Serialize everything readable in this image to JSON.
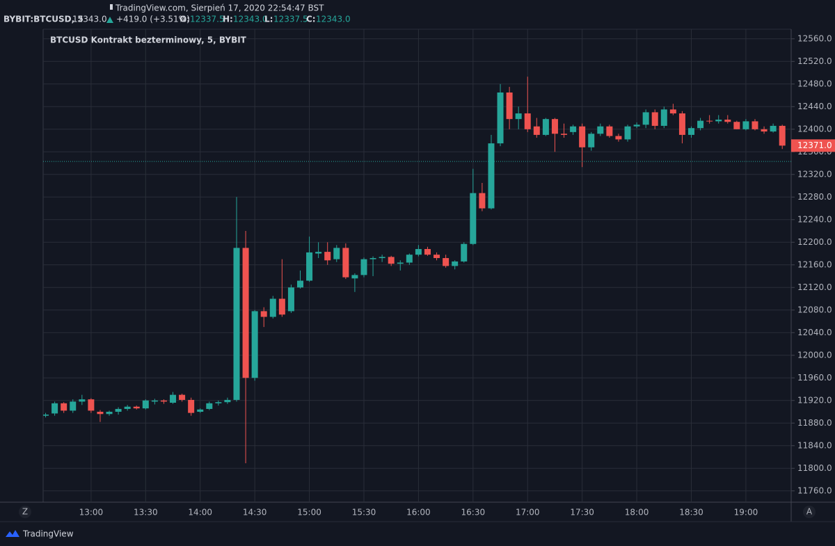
{
  "header": {
    "source": "TradingView.com, Sierpień 17, 2020 22:54:47 BST",
    "symbol": "BYBIT:BTCUSD, 5",
    "last": "12343.0",
    "change": "+419.0 (+3.51%)",
    "ohlc": [
      {
        "label": "O:",
        "value": "12337.5"
      },
      {
        "label": "H:",
        "value": "12343.0"
      },
      {
        "label": "L:",
        "value": "12337.5"
      },
      {
        "label": "C:",
        "value": "12343.0"
      }
    ]
  },
  "ui": {
    "left_button": "Z",
    "right_button": "A",
    "brand": "TradingView"
  },
  "chart_data": {
    "type": "candlestick",
    "title": "BTCUSD Kontrakt bezterminowy, 5, BYBIT",
    "up_color": "#26a69a",
    "down_color": "#ef5350",
    "grid": true,
    "x": [
      "12:35",
      "12:40",
      "12:45",
      "12:50",
      "12:55",
      "13:00",
      "13:05",
      "13:10",
      "13:15",
      "13:20",
      "13:25",
      "13:30",
      "13:35",
      "13:40",
      "13:45",
      "13:50",
      "13:55",
      "14:00",
      "14:05",
      "14:10",
      "14:15",
      "14:20",
      "14:25",
      "14:30",
      "14:35",
      "14:40",
      "14:45",
      "14:50",
      "14:55",
      "15:00",
      "15:05",
      "15:10",
      "15:15",
      "15:20",
      "15:25",
      "15:30",
      "15:35",
      "15:40",
      "15:45",
      "15:50",
      "15:55",
      "16:00",
      "16:05",
      "16:10",
      "16:15",
      "16:20",
      "16:25",
      "16:30",
      "16:35",
      "16:40",
      "16:45",
      "16:50",
      "16:55",
      "17:00",
      "17:05",
      "17:10",
      "17:15",
      "17:20",
      "17:25",
      "17:30",
      "17:35",
      "17:40",
      "17:45",
      "17:50",
      "17:55",
      "18:00",
      "18:05",
      "18:10",
      "18:15",
      "18:20",
      "18:25",
      "18:30",
      "18:35",
      "18:40",
      "18:45",
      "18:50",
      "18:55",
      "19:00",
      "19:05",
      "19:10",
      "19:15",
      "19:20"
    ],
    "open": [
      11893,
      11897,
      11915,
      11902,
      11918,
      11922,
      11900,
      11896,
      11900,
      11905,
      11909,
      11906,
      11918,
      11920,
      11916,
      11930,
      11921,
      11900,
      11905,
      11915,
      11917,
      11921,
      12190,
      11960,
      12078,
      12068,
      12100,
      12078,
      12120,
      12132,
      12180,
      12183,
      12170,
      12190,
      12136,
      12142,
      12170,
      12172,
      12174,
      12162,
      12164,
      12178,
      12188,
      12178,
      12172,
      12158,
      12166,
      12197,
      12287,
      12260,
      12375,
      12465,
      12418,
      12428,
      12405,
      12390,
      12418,
      12392,
      12395,
      12405,
      12368,
      12392,
      12405,
      12388,
      12382,
      12405,
      12408,
      12430,
      12406,
      12435,
      12428,
      12390,
      12402,
      12415,
      12414,
      12417,
      12413,
      12400,
      12414,
      12400,
      12396,
      12406
    ],
    "high": [
      11898,
      11918,
      11917,
      11922,
      11930,
      11924,
      11903,
      11902,
      11908,
      11912,
      11911,
      11922,
      11923,
      11922,
      11935,
      11932,
      11925,
      11906,
      11918,
      11920,
      11925,
      12280,
      12220,
      12080,
      12085,
      12105,
      12170,
      12125,
      12150,
      12210,
      12200,
      12200,
      12195,
      12198,
      12145,
      12173,
      12175,
      12178,
      12176,
      12168,
      12180,
      12195,
      12192,
      12182,
      12178,
      12168,
      12200,
      12330,
      12305,
      12390,
      12480,
      12475,
      12440,
      12493,
      12420,
      12420,
      12420,
      12410,
      12408,
      12410,
      12395,
      12410,
      12408,
      12392,
      12408,
      12412,
      12435,
      12435,
      12440,
      12445,
      12432,
      12405,
      12420,
      12425,
      12425,
      12425,
      12415,
      12418,
      12418,
      12405,
      12410,
      12408
    ],
    "low": [
      11890,
      11893,
      11898,
      11898,
      11912,
      11898,
      11882,
      11893,
      11895,
      11902,
      11904,
      11904,
      11913,
      11914,
      11914,
      11918,
      11893,
      11898,
      11903,
      11911,
      11914,
      11918,
      11809,
      11955,
      12050,
      12065,
      12068,
      12075,
      12118,
      12130,
      12172,
      12160,
      12165,
      12135,
      12112,
      12138,
      12140,
      12165,
      12158,
      12150,
      12160,
      12175,
      12176,
      12168,
      12155,
      12152,
      12164,
      12195,
      12255,
      12258,
      12370,
      12400,
      12400,
      12395,
      12385,
      12388,
      12360,
      12385,
      12390,
      12333,
      12362,
      12388,
      12385,
      12378,
      12378,
      12402,
      12402,
      12400,
      12402,
      12425,
      12375,
      12385,
      12398,
      12410,
      12410,
      12410,
      12400,
      12398,
      12398,
      12392,
      12394,
      12365
    ],
    "close": [
      11895,
      11915,
      11902,
      11918,
      11922,
      11902,
      11896,
      11900,
      11905,
      11909,
      11906,
      11920,
      11920,
      11918,
      11930,
      11921,
      11898,
      11904,
      11915,
      11917,
      11921,
      12190,
      11960,
      12078,
      12068,
      12100,
      12072,
      12120,
      12132,
      12182,
      12183,
      12168,
      12190,
      12138,
      12142,
      12170,
      12172,
      12174,
      12162,
      12164,
      12178,
      12188,
      12178,
      12172,
      12158,
      12166,
      12197,
      12287,
      12260,
      12375,
      12465,
      12418,
      12428,
      12400,
      12390,
      12418,
      12392,
      12390,
      12405,
      12368,
      12392,
      12405,
      12388,
      12382,
      12405,
      12408,
      12430,
      12406,
      12435,
      12428,
      12390,
      12402,
      12415,
      12414,
      12417,
      12413,
      12400,
      12414,
      12400,
      12396,
      12406,
      12371
    ],
    "xticks": [
      "13:00",
      "13:30",
      "14:00",
      "14:30",
      "15:00",
      "15:30",
      "16:00",
      "16:30",
      "17:00",
      "17:30",
      "18:00",
      "18:30",
      "19:00"
    ],
    "ylim": [
      11740,
      12577
    ],
    "yticks": [
      {
        "value": 11760,
        "label": "11760.0"
      },
      {
        "value": 11800,
        "label": "11800.0"
      },
      {
        "value": 11840,
        "label": "11840.0"
      },
      {
        "value": 11880,
        "label": "11880.0"
      },
      {
        "value": 11920,
        "label": "11920.0"
      },
      {
        "value": 11960,
        "label": "11960.0"
      },
      {
        "value": 12000,
        "label": "12000.0"
      },
      {
        "value": 12040,
        "label": "12040.0"
      },
      {
        "value": 12080,
        "label": "12080.0"
      },
      {
        "value": 12120,
        "label": "12120.0"
      },
      {
        "value": 12160,
        "label": "12160.0"
      },
      {
        "value": 12200,
        "label": "12200.0"
      },
      {
        "value": 12240,
        "label": "12240.0"
      },
      {
        "value": 12280,
        "label": "12280.0"
      },
      {
        "value": 12320,
        "label": "12320.0"
      },
      {
        "value": 12360,
        "label": "12360.0"
      },
      {
        "value": 12400,
        "label": "12400.0"
      },
      {
        "value": 12440,
        "label": "12440.0"
      },
      {
        "value": 12480,
        "label": "12480.0"
      },
      {
        "value": 12520,
        "label": "12520.0"
      },
      {
        "value": 12560,
        "label": "12560.0"
      }
    ],
    "price_line": 12343,
    "last_price": {
      "value": 12371,
      "label": "12371.0"
    }
  }
}
